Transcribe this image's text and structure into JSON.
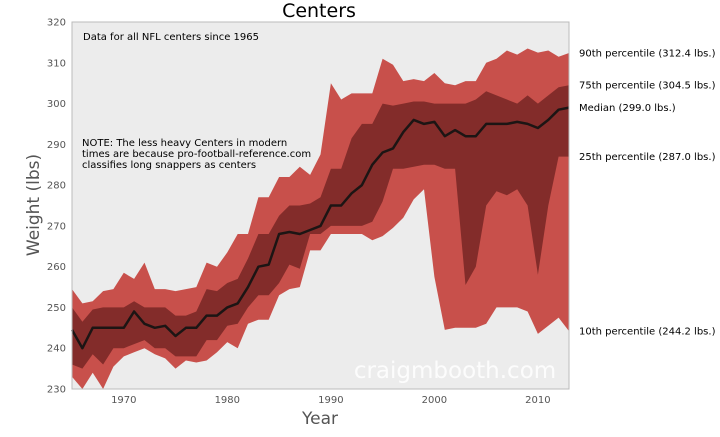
{
  "colors": {
    "plot_background": "#ececec",
    "outer_band": "#c8504b",
    "inner_band": "#832c2a",
    "median_line": "#1c1514",
    "watermark": "#ffffff"
  },
  "chart_data": {
    "type": "area",
    "title": "Centers",
    "xlabel": "Year",
    "ylabel": "Weight (lbs)",
    "xlim": [
      1965,
      2013
    ],
    "ylim": [
      230,
      320
    ],
    "xticks": [
      1970,
      1980,
      1990,
      2000,
      2010
    ],
    "yticks": [
      230,
      240,
      250,
      260,
      270,
      280,
      290,
      300,
      310,
      320
    ],
    "grid": false,
    "x": [
      1965,
      1966,
      1967,
      1968,
      1969,
      1970,
      1971,
      1972,
      1973,
      1974,
      1975,
      1976,
      1977,
      1978,
      1979,
      1980,
      1981,
      1982,
      1983,
      1984,
      1985,
      1986,
      1987,
      1988,
      1989,
      1990,
      1991,
      1992,
      1993,
      1994,
      1995,
      1996,
      1997,
      1998,
      1999,
      2000,
      2001,
      2002,
      2003,
      2004,
      2005,
      2006,
      2007,
      2008,
      2009,
      2010,
      2011,
      2012,
      2013
    ],
    "series": [
      {
        "key": "p90",
        "name": "90th percentile",
        "values": [
          254.5,
          251,
          251.5,
          254,
          254.5,
          258.5,
          257,
          261,
          254.5,
          254.5,
          254,
          254.5,
          255,
          261,
          260,
          263.5,
          268,
          268,
          277,
          277,
          282,
          282,
          284.5,
          282.5,
          287.5,
          305,
          301,
          302.5,
          302.5,
          302.5,
          311,
          309.5,
          305.5,
          306,
          305.5,
          307.5,
          305,
          304.5,
          305.5,
          305.5,
          310,
          311,
          313,
          312,
          313.5,
          312.5,
          313,
          311.5,
          312.4
        ]
      },
      {
        "key": "p75",
        "name": "75th percentile",
        "values": [
          250,
          246.5,
          249.5,
          250,
          250,
          250,
          251.5,
          250,
          250,
          250,
          248,
          248,
          249,
          254.5,
          254,
          256,
          257,
          262,
          268,
          268,
          272.5,
          275,
          275,
          275.5,
          277,
          284,
          284,
          291.5,
          295,
          295,
          300,
          299.5,
          300,
          300.5,
          300.5,
          300,
          300,
          300,
          300,
          301,
          303,
          302,
          301,
          300,
          302,
          300,
          302,
          304,
          304.5
        ]
      },
      {
        "key": "median",
        "name": "Median",
        "values": [
          244.5,
          240,
          245,
          245,
          245,
          245,
          249,
          246,
          245,
          245.5,
          243,
          245,
          245,
          248,
          248,
          250,
          251,
          255,
          260,
          260.5,
          268,
          268.5,
          268,
          269,
          270,
          275,
          275,
          278,
          280,
          285,
          288,
          289,
          293,
          296,
          295,
          295.5,
          292,
          293.5,
          292,
          292,
          295,
          295,
          295,
          295.5,
          295,
          294,
          296,
          298.5,
          299
        ]
      },
      {
        "key": "p25",
        "name": "25th percentile",
        "values": [
          236,
          235,
          238.5,
          236,
          240,
          240,
          241,
          242,
          240,
          240,
          238,
          238,
          238,
          242,
          242,
          245.5,
          246,
          250,
          253,
          253,
          256,
          260.5,
          259.5,
          268,
          268,
          270,
          270,
          270,
          270,
          271,
          276,
          284,
          284,
          284.5,
          285,
          285,
          284,
          284,
          255.5,
          260,
          275,
          278.5,
          277.5,
          279,
          275,
          258,
          275,
          287,
          287
        ]
      },
      {
        "key": "p10",
        "name": "10th percentile",
        "values": [
          233,
          230,
          234,
          230,
          235.5,
          238,
          239,
          240,
          238.5,
          237.5,
          235,
          237,
          236.5,
          237,
          239,
          241.5,
          240,
          246,
          247,
          247,
          253,
          254.5,
          255,
          264,
          264,
          268,
          268,
          268,
          268,
          266.5,
          267.5,
          269.5,
          272,
          276.5,
          279,
          257.5,
          244.5,
          245,
          245,
          245,
          246,
          250,
          250,
          250,
          249,
          243.5,
          245.5,
          247.5,
          244.2
        ]
      }
    ],
    "annotations": {
      "data_note": "Data for all NFL centers since 1965",
      "note_lines": [
        "NOTE: The less heavy Centers in modern",
        "times are because pro-football-reference.com",
        "classifies long snappers as centers"
      ],
      "watermark": "craigmbooth.com"
    },
    "end_labels": [
      {
        "series": "p90",
        "text": "90th percentile (312.4 lbs.)"
      },
      {
        "series": "p75",
        "text": "75th percentile (304.5 lbs.)"
      },
      {
        "series": "median",
        "text": "Median (299.0 lbs.)"
      },
      {
        "series": "p25",
        "text": "25th percentile (287.0 lbs.)"
      },
      {
        "series": "p10",
        "text": "10th percentile (244.2 lbs.)"
      }
    ]
  }
}
